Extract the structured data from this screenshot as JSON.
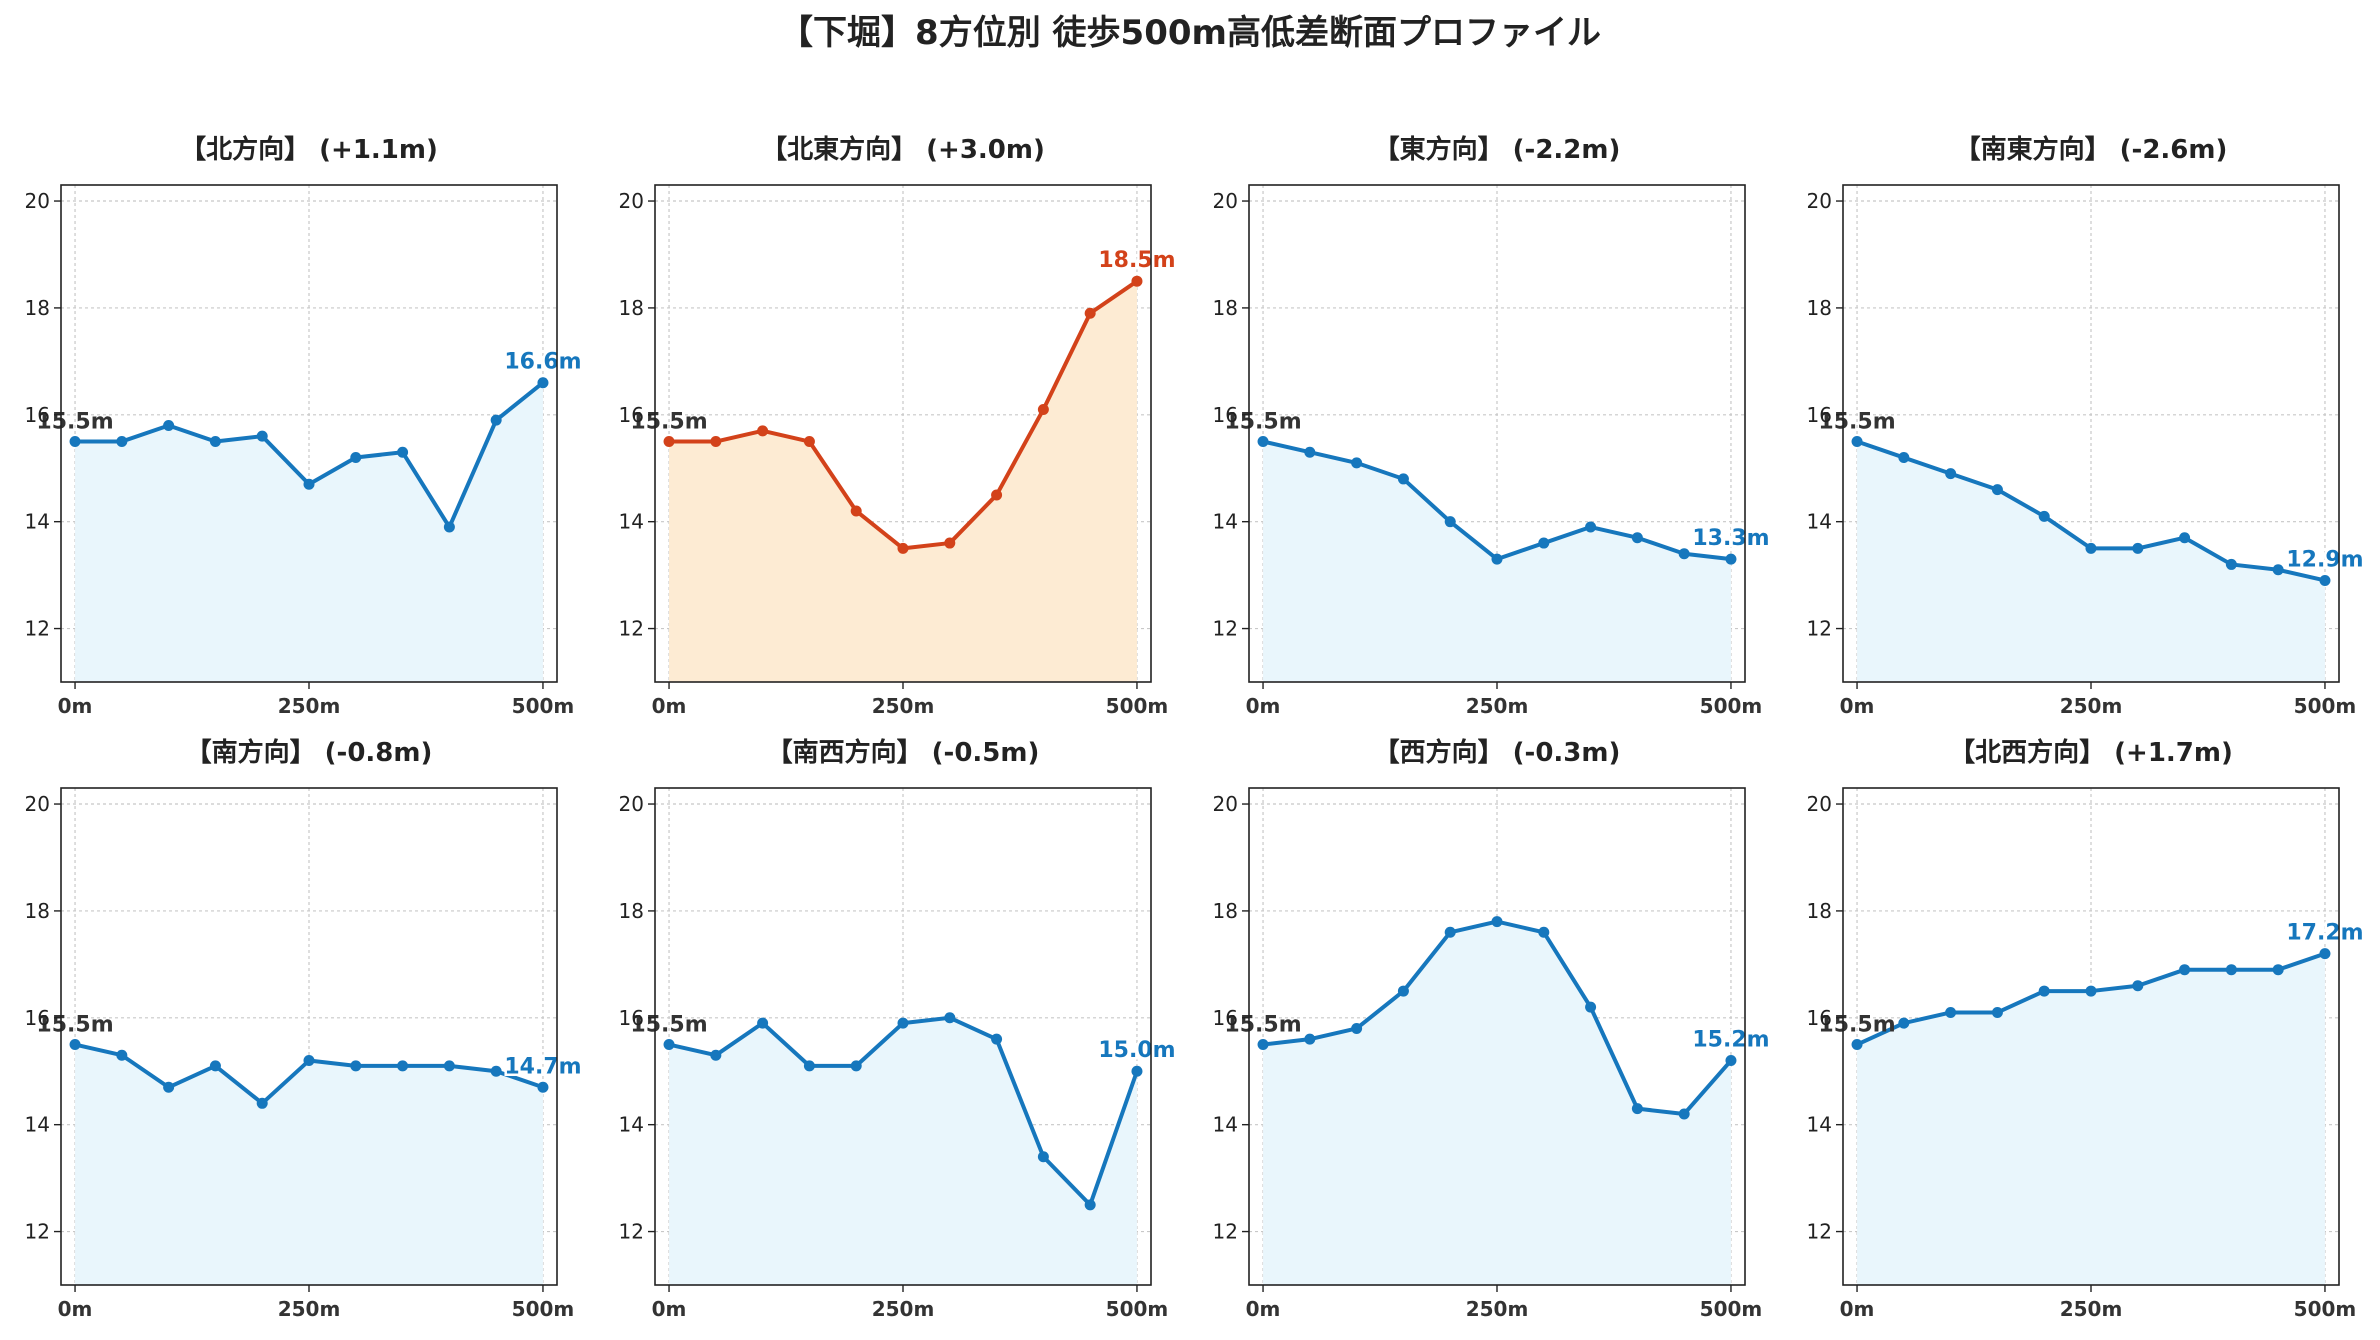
{
  "suptitle": "【下堀】8方位別 徒歩500m高低差断面プロファイル",
  "colors": {
    "normal_line": "#1677bd",
    "normal_fill": "#e9f6fc",
    "highlight_line": "#d3421a",
    "highlight_fill": "#fdebd3",
    "start_label": "#333333"
  },
  "chart_data": [
    {
      "type": "area",
      "title": "【北方向】 (+1.1m)",
      "highlight": false,
      "x": [
        0,
        50,
        100,
        150,
        200,
        250,
        300,
        350,
        400,
        450,
        500
      ],
      "y": [
        15.5,
        15.5,
        15.8,
        15.5,
        15.6,
        14.7,
        15.2,
        15.3,
        13.9,
        15.9,
        16.6
      ],
      "start_label": "15.5m",
      "end_label": "16.6m",
      "ylim": [
        11,
        20.3
      ],
      "yticks": [
        12,
        14,
        16,
        18,
        20
      ],
      "ytick_labels": [
        "12",
        "14",
        "16",
        "18",
        "20"
      ],
      "xlim": [
        -15,
        515
      ],
      "xticks": [
        0,
        250,
        500
      ],
      "xtick_labels": [
        "0m",
        "250m",
        "500m"
      ],
      "grid": true
    },
    {
      "type": "area",
      "title": "【北東方向】 (+3.0m)",
      "highlight": true,
      "x": [
        0,
        50,
        100,
        150,
        200,
        250,
        300,
        350,
        400,
        450,
        500
      ],
      "y": [
        15.5,
        15.5,
        15.7,
        15.5,
        14.2,
        13.5,
        13.6,
        14.5,
        16.1,
        17.9,
        18.5
      ],
      "start_label": "15.5m",
      "end_label": "18.5m",
      "ylim": [
        11,
        20.3
      ],
      "yticks": [
        12,
        14,
        16,
        18,
        20
      ],
      "ytick_labels": [
        "12",
        "14",
        "16",
        "18",
        "20"
      ],
      "xlim": [
        -15,
        515
      ],
      "xticks": [
        0,
        250,
        500
      ],
      "xtick_labels": [
        "0m",
        "250m",
        "500m"
      ],
      "grid": true
    },
    {
      "type": "area",
      "title": "【東方向】 (-2.2m)",
      "highlight": false,
      "x": [
        0,
        50,
        100,
        150,
        200,
        250,
        300,
        350,
        400,
        450,
        500
      ],
      "y": [
        15.5,
        15.3,
        15.1,
        14.8,
        14.0,
        13.3,
        13.6,
        13.9,
        13.7,
        13.4,
        13.3
      ],
      "start_label": "15.5m",
      "end_label": "13.3m",
      "ylim": [
        11,
        20.3
      ],
      "yticks": [
        12,
        14,
        16,
        18,
        20
      ],
      "ytick_labels": [
        "12",
        "14",
        "16",
        "18",
        "20"
      ],
      "xlim": [
        -15,
        515
      ],
      "xticks": [
        0,
        250,
        500
      ],
      "xtick_labels": [
        "0m",
        "250m",
        "500m"
      ],
      "grid": true
    },
    {
      "type": "area",
      "title": "【南東方向】 (-2.6m)",
      "highlight": false,
      "x": [
        0,
        50,
        100,
        150,
        200,
        250,
        300,
        350,
        400,
        450,
        500
      ],
      "y": [
        15.5,
        15.2,
        14.9,
        14.6,
        14.1,
        13.5,
        13.5,
        13.7,
        13.2,
        13.1,
        12.9
      ],
      "start_label": "15.5m",
      "end_label": "12.9m",
      "ylim": [
        11,
        20.3
      ],
      "yticks": [
        12,
        14,
        16,
        18,
        20
      ],
      "ytick_labels": [
        "12",
        "14",
        "16",
        "18",
        "20"
      ],
      "xlim": [
        -15,
        515
      ],
      "xticks": [
        0,
        250,
        500
      ],
      "xtick_labels": [
        "0m",
        "250m",
        "500m"
      ],
      "grid": true
    },
    {
      "type": "area",
      "title": "【南方向】 (-0.8m)",
      "highlight": false,
      "x": [
        0,
        50,
        100,
        150,
        200,
        250,
        300,
        350,
        400,
        450,
        500
      ],
      "y": [
        15.5,
        15.3,
        14.7,
        15.1,
        14.4,
        15.2,
        15.1,
        15.1,
        15.1,
        15.0,
        14.7
      ],
      "start_label": "15.5m",
      "end_label": "14.7m",
      "ylim": [
        11,
        20.3
      ],
      "yticks": [
        12,
        14,
        16,
        18,
        20
      ],
      "ytick_labels": [
        "12",
        "14",
        "16",
        "18",
        "20"
      ],
      "xlim": [
        -15,
        515
      ],
      "xticks": [
        0,
        250,
        500
      ],
      "xtick_labels": [
        "0m",
        "250m",
        "500m"
      ],
      "grid": true
    },
    {
      "type": "area",
      "title": "【南西方向】 (-0.5m)",
      "highlight": false,
      "x": [
        0,
        50,
        100,
        150,
        200,
        250,
        300,
        350,
        400,
        450,
        500
      ],
      "y": [
        15.5,
        15.3,
        15.9,
        15.1,
        15.1,
        15.9,
        16.0,
        15.6,
        13.4,
        12.5,
        15.0
      ],
      "start_label": "15.5m",
      "end_label": "15.0m",
      "ylim": [
        11,
        20.3
      ],
      "yticks": [
        12,
        14,
        16,
        18,
        20
      ],
      "ytick_labels": [
        "12",
        "14",
        "16",
        "18",
        "20"
      ],
      "xlim": [
        -15,
        515
      ],
      "xticks": [
        0,
        250,
        500
      ],
      "xtick_labels": [
        "0m",
        "250m",
        "500m"
      ],
      "grid": true
    },
    {
      "type": "area",
      "title": "【西方向】 (-0.3m)",
      "highlight": false,
      "x": [
        0,
        50,
        100,
        150,
        200,
        250,
        300,
        350,
        400,
        450,
        500
      ],
      "y": [
        15.5,
        15.6,
        15.8,
        16.5,
        17.6,
        17.8,
        17.6,
        16.2,
        14.3,
        14.2,
        15.2
      ],
      "start_label": "15.5m",
      "end_label": "15.2m",
      "ylim": [
        11,
        20.3
      ],
      "yticks": [
        12,
        14,
        16,
        18,
        20
      ],
      "ytick_labels": [
        "12",
        "14",
        "16",
        "18",
        "20"
      ],
      "xlim": [
        -15,
        515
      ],
      "xticks": [
        0,
        250,
        500
      ],
      "xtick_labels": [
        "0m",
        "250m",
        "500m"
      ],
      "grid": true
    },
    {
      "type": "area",
      "title": "【北西方向】 (+1.7m)",
      "highlight": false,
      "x": [
        0,
        50,
        100,
        150,
        200,
        250,
        300,
        350,
        400,
        450,
        500
      ],
      "y": [
        15.5,
        15.9,
        16.1,
        16.1,
        16.5,
        16.5,
        16.6,
        16.9,
        16.9,
        16.9,
        17.2
      ],
      "start_label": "15.5m",
      "end_label": "17.2m",
      "ylim": [
        11,
        20.3
      ],
      "yticks": [
        12,
        14,
        16,
        18,
        20
      ],
      "ytick_labels": [
        "12",
        "14",
        "16",
        "18",
        "20"
      ],
      "xlim": [
        -15,
        515
      ],
      "xticks": [
        0,
        250,
        500
      ],
      "xtick_labels": [
        "0m",
        "250m",
        "500m"
      ],
      "grid": true
    }
  ]
}
